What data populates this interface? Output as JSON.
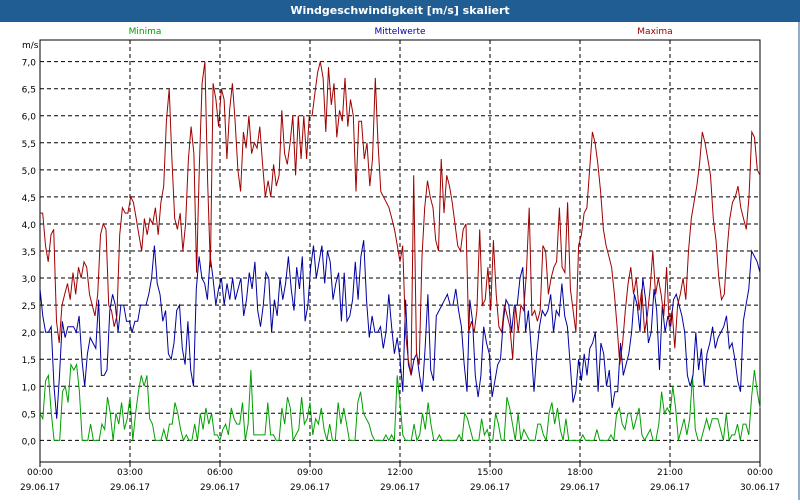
{
  "window": {
    "title": "Windgeschwindigkeit [m/s] skaliert"
  },
  "chart_data": {
    "type": "line",
    "title": "Windgeschwindigkeit [m/s] skaliert",
    "ylabel": "m/s",
    "xlabel": "",
    "ylim": [
      -0.4,
      7.4
    ],
    "xlim": [
      0,
      24
    ],
    "grid": true,
    "legend_position": "top",
    "y_ticks": [
      "0,0",
      "0,5",
      "1,0",
      "1,5",
      "2,0",
      "2,5",
      "3,0",
      "3,5",
      "4,0",
      "4,5",
      "5,0",
      "5,5",
      "6,0",
      "6,5",
      "7,0"
    ],
    "y_tick_values": [
      0,
      0.5,
      1,
      1.5,
      2,
      2.5,
      3,
      3.5,
      4,
      4.5,
      5,
      5.5,
      6,
      6.5,
      7
    ],
    "x_tick_hours": [
      0,
      3,
      6,
      9,
      12,
      15,
      18,
      21,
      24
    ],
    "x_tick_times": [
      "00:00",
      "03:00",
      "06:00",
      "09:00",
      "12:00",
      "15:00",
      "18:00",
      "21:00",
      "00:00"
    ],
    "x_tick_dates": [
      "29.06.17",
      "29.06.17",
      "29.06.17",
      "29.06.17",
      "29.06.17",
      "29.06.17",
      "29.06.17",
      "29.06.17",
      "30.06.17"
    ],
    "series": [
      {
        "name": "Minima",
        "color": "#00a000",
        "values": [
          0.5,
          0.4,
          1.1,
          1.2,
          0.5,
          0.0,
          0.0,
          0.0,
          0.9,
          1.0,
          0.7,
          1.4,
          1.3,
          1.4,
          0.9,
          0.0,
          0.0,
          0.0,
          0.3,
          0.0,
          0.0,
          0.0,
          0.3,
          0.2,
          0.8,
          0.5,
          0.0,
          0.5,
          0.3,
          0.7,
          0.2,
          0.4,
          0.8,
          0.0,
          0.5,
          0.9,
          1.2,
          1.0,
          1.2,
          0.4,
          0.3,
          0.0,
          0.0,
          0.0,
          0.2,
          0.0,
          0.3,
          0.3,
          0.7,
          0.5,
          0.2,
          0.0,
          0.1,
          0.0,
          0.0,
          0.3,
          0.0,
          0.5,
          0.2,
          0.6,
          0.3,
          0.5,
          0.1,
          0.1,
          0.0,
          0.2,
          0.3,
          0.1,
          0.6,
          0.4,
          0.3,
          0.3,
          0.7,
          0.0,
          0.3,
          1.3,
          0.1,
          0.1,
          0.1,
          0.1,
          0.1,
          0.7,
          0.1,
          0.1,
          0.0,
          0.0,
          0.6,
          0.3,
          0.8,
          0.6,
          0.0,
          0.1,
          0.2,
          0.8,
          0.3,
          0.4,
          0.7,
          0.1,
          0.4,
          0.3,
          0.6,
          0.2,
          0.0,
          0.3,
          0.0,
          0.0,
          0.7,
          0.3,
          0.6,
          0.3,
          0.0,
          0.0,
          0.0,
          0.7,
          0.9,
          0.5,
          0.4,
          0.3,
          0.1,
          0.0,
          0.0,
          0.0,
          0.0,
          0.1,
          0.0,
          0.1,
          0.0,
          1.2,
          0.7,
          0.1,
          0.0,
          0.0,
          0.0,
          0.3,
          0.0,
          0.1,
          0.5,
          0.2,
          0.7,
          0.3,
          0.0,
          0.0,
          0.1,
          0.0,
          0.0,
          0.0,
          0.0,
          0.0,
          0.0,
          0.1,
          0.0,
          0.5,
          0.4,
          0.2,
          0.0,
          0.0,
          0.0,
          0.4,
          0.1,
          0.2,
          0.0,
          0.0,
          0.5,
          0.3,
          0.0,
          0.0,
          0.8,
          0.6,
          0.3,
          0.0,
          0.5,
          0.0,
          0.2,
          0.1,
          0.0,
          0.0,
          0.0,
          0.3,
          0.3,
          0.1,
          0.0,
          0.5,
          0.7,
          0.3,
          0.6,
          0.2,
          0.0,
          0.4,
          0.0,
          0.0,
          0.0,
          0.0,
          0.0,
          0.1,
          0.0,
          0.0,
          0.0,
          0.0,
          0.2,
          0.0,
          0.0,
          0.0,
          0.0,
          0.1,
          0.0,
          0.5,
          0.6,
          0.3,
          0.2,
          0.5,
          0.5,
          0.2,
          0.4,
          0.6,
          0.1,
          0.0,
          0.1,
          0.2,
          0.0,
          0.0,
          0.3,
          0.9,
          0.5,
          0.6,
          0.5,
          1.0,
          0.6,
          0.0,
          0.2,
          0.4,
          0.1,
          0.4,
          1.2,
          0.2,
          0.0,
          0.0,
          0.2,
          0.4,
          0.2,
          0.4,
          0.4,
          0.4,
          0.2,
          0.0,
          0.5,
          0.0,
          0.1,
          0.1,
          0.3,
          0.0,
          0.3,
          0.3,
          0.1,
          0.8,
          1.3,
          0.9,
          0.6
        ]
      },
      {
        "name": "Mittelwerte",
        "color": "#0000a0",
        "values": [
          2.8,
          2.3,
          2.0,
          2.0,
          2.1,
          1.0,
          0.4,
          1.2,
          2.2,
          1.9,
          2.1,
          2.1,
          2.1,
          2.0,
          2.3,
          1.5,
          1.0,
          1.6,
          1.9,
          1.8,
          1.7,
          2.6,
          1.2,
          1.2,
          1.3,
          2.4,
          2.7,
          2.5,
          2.0,
          2.5,
          2.5,
          2.2,
          2.2,
          2.0,
          2.2,
          2.2,
          2.5,
          2.5,
          2.5,
          2.7,
          3.0,
          3.6,
          2.9,
          2.7,
          2.2,
          2.4,
          1.6,
          1.5,
          1.8,
          2.4,
          2.5,
          1.7,
          1.4,
          2.2,
          1.3,
          1.0,
          2.8,
          3.4,
          3.0,
          2.9,
          2.6,
          3.4,
          3.0,
          2.5,
          2.8,
          3.0,
          2.5,
          2.9,
          2.6,
          3.0,
          2.6,
          2.8,
          3.0,
          2.3,
          2.6,
          3.1,
          2.8,
          3.3,
          2.4,
          2.1,
          2.5,
          3.1,
          3.0,
          2.0,
          2.6,
          2.3,
          3.0,
          2.6,
          2.9,
          3.4,
          2.8,
          2.4,
          3.2,
          2.8,
          3.4,
          2.2,
          2.5,
          3.2,
          3.6,
          3.0,
          3.3,
          3.6,
          2.9,
          3.5,
          3.3,
          2.6,
          2.9,
          3.1,
          2.2,
          3.1,
          2.2,
          2.3,
          2.6,
          3.3,
          2.6,
          3.4,
          3.7,
          2.6,
          1.9,
          2.3,
          2.0,
          2.0,
          2.1,
          1.7,
          2.0,
          2.7,
          2.1,
          1.6,
          1.9,
          1.5,
          0.9,
          2.6,
          1.4,
          1.2,
          1.5,
          1.6,
          1.2,
          0.9,
          1.7,
          2.7,
          1.3,
          1.1,
          2.3,
          2.4,
          2.5,
          2.6,
          2.7,
          2.5,
          2.5,
          2.8,
          2.4,
          2.1,
          1.4,
          0.9,
          2.6,
          2.2,
          1.2,
          0.8,
          1.2,
          2.1,
          1.8,
          1.6,
          0.8,
          1.1,
          1.4,
          1.5,
          2.2,
          2.6,
          2.5,
          2.0,
          2.5,
          2.5,
          3.0,
          3.2,
          2.0,
          2.4,
          1.7,
          0.9,
          1.6,
          2.1,
          2.4,
          2.3,
          2.4,
          2.7,
          2.0,
          2.4,
          2.3,
          2.9,
          2.3,
          2.1,
          1.4,
          0.7,
          0.9,
          1.5,
          1.1,
          1.6,
          1.2,
          1.7,
          1.8,
          2.0,
          0.9,
          1.8,
          1.6,
          1.0,
          1.3,
          0.6,
          0.9,
          0.9,
          1.8,
          1.2,
          1.4,
          1.6,
          2.0,
          2.7,
          2.5,
          2.0,
          3.0,
          2.6,
          1.8,
          2.0,
          2.8,
          2.4,
          1.3,
          2.5,
          2.0,
          2.3,
          2.1,
          2.6,
          2.7,
          2.5,
          2.3,
          2.0,
          1.2,
          1.0,
          1.2,
          2.0,
          1.3,
          1.7,
          1.0,
          1.6,
          1.8,
          2.1,
          1.7,
          1.9,
          2.0,
          2.1,
          2.3,
          1.7,
          1.8,
          1.5,
          1.1,
          0.9,
          2.2,
          2.5,
          2.8,
          3.5,
          3.4,
          3.3,
          3.1
        ]
      },
      {
        "name": "Maxima",
        "color": "#a00000",
        "values": [
          4.2,
          4.2,
          3.6,
          3.3,
          3.8,
          3.9,
          2.2,
          1.8,
          2.5,
          2.7,
          2.9,
          2.6,
          3.1,
          2.7,
          3.2,
          3.0,
          3.3,
          3.2,
          2.7,
          2.5,
          2.3,
          2.7,
          3.8,
          4.0,
          3.9,
          2.5,
          2.4,
          2.1,
          2.3,
          3.8,
          4.3,
          4.2,
          4.2,
          4.5,
          4.4,
          4.1,
          3.8,
          3.5,
          4.1,
          3.8,
          4.1,
          4.0,
          4.3,
          3.8,
          4.4,
          4.7,
          5.9,
          6.5,
          5.2,
          4.1,
          3.9,
          4.2,
          3.5,
          4.0,
          5.2,
          5.8,
          5.3,
          3.1,
          5.1,
          6.6,
          7.0,
          4.8,
          3.2,
          6.6,
          6.3,
          5.8,
          6.5,
          6.3,
          5.2,
          6.1,
          6.6,
          5.9,
          5.0,
          4.6,
          5.7,
          5.4,
          6.0,
          5.3,
          5.5,
          5.4,
          5.8,
          5.1,
          4.5,
          4.8,
          4.5,
          5.1,
          4.7,
          4.9,
          6.1,
          5.3,
          5.1,
          5.5,
          6.0,
          4.9,
          6.0,
          5.2,
          6.0,
          5.2,
          6.0,
          6.0,
          6.4,
          6.8,
          7.0,
          6.7,
          5.7,
          6.9,
          6.2,
          6.6,
          5.6,
          6.1,
          5.9,
          6.7,
          5.8,
          6.3,
          6.0,
          4.6,
          5.9,
          5.9,
          5.2,
          5.5,
          4.7,
          5.2,
          6.7,
          5.5,
          4.6,
          4.5,
          4.4,
          4.3,
          4.1,
          3.9,
          3.6,
          3.3,
          3.6,
          2.0,
          1.5,
          1.2,
          4.9,
          1.6,
          1.4,
          3.4,
          4.3,
          4.8,
          4.5,
          4.3,
          3.7,
          3.5,
          5.2,
          4.2,
          4.9,
          4.7,
          4.4,
          4.0,
          3.6,
          3.5,
          3.9,
          4.0,
          2.0,
          2.2,
          2.0,
          2.4,
          3.9,
          2.5,
          2.6,
          3.2,
          2.4,
          3.7,
          2.7,
          2.1,
          2.0,
          2.5,
          2.3,
          2.1,
          1.5,
          2.5,
          2.0,
          2.5,
          2.4,
          3.1,
          4.3,
          2.3,
          2.4,
          2.2,
          2.4,
          3.6,
          3.5,
          2.7,
          3.0,
          3.2,
          3.3,
          4.3,
          3.2,
          3.1,
          4.4,
          2.8,
          2.4,
          2.0,
          3.6,
          3.8,
          4.2,
          4.3,
          5.0,
          5.7,
          5.5,
          5.1,
          4.6,
          3.9,
          3.6,
          3.4,
          3.2,
          2.7,
          2.1,
          1.4,
          1.8,
          2.4,
          2.9,
          3.2,
          2.7,
          3.0,
          2.4,
          2.8,
          2.0,
          2.3,
          2.8,
          3.5,
          2.7,
          3.0,
          2.7,
          2.3,
          3.2,
          2.1,
          2.4,
          1.7,
          2.5,
          2.7,
          3.0,
          2.6,
          3.5,
          4.1,
          4.4,
          4.7,
          5.1,
          5.7,
          5.5,
          5.2,
          4.9,
          4.1,
          3.7,
          3.0,
          2.6,
          2.7,
          3.5,
          4.1,
          4.4,
          4.5,
          4.7,
          4.3,
          4.1,
          3.9,
          4.5,
          5.7,
          5.6,
          5.0,
          4.9
        ]
      }
    ]
  }
}
